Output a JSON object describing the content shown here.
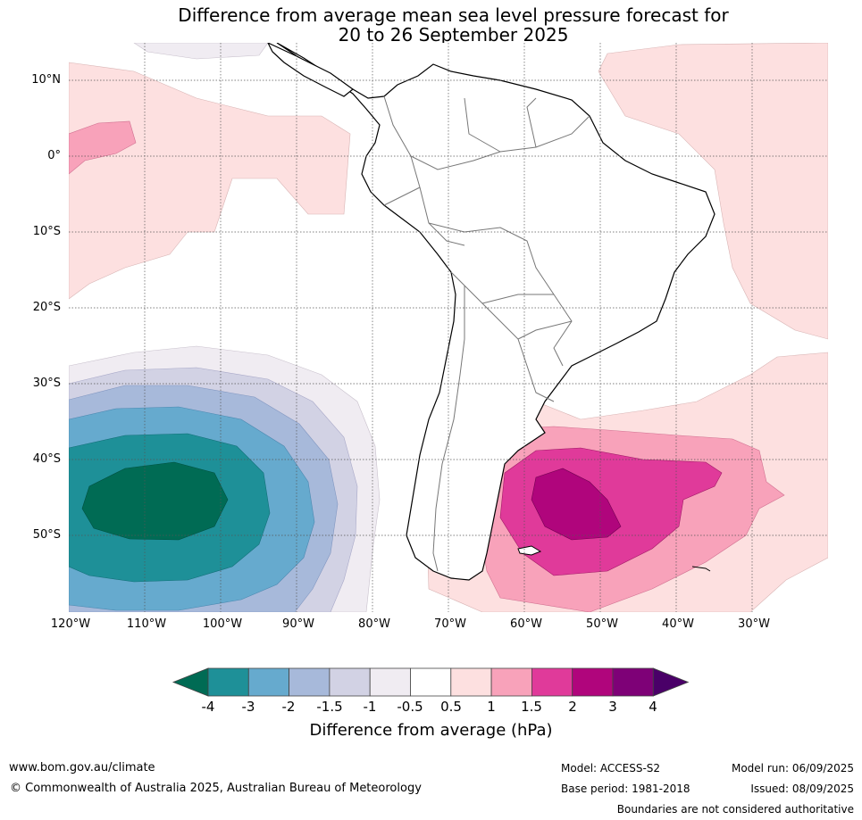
{
  "title": {
    "line1": "Difference from average mean sea level pressure forecast for",
    "line2": "20 to 26 September 2025"
  },
  "map": {
    "lat_labels": [
      "10°N",
      "0°",
      "10°S",
      "20°S",
      "30°S",
      "40°S",
      "50°S"
    ],
    "lon_labels": [
      "120°W",
      "110°W",
      "100°W",
      "90°W",
      "80°W",
      "70°W",
      "60°W",
      "50°W",
      "40°W",
      "30°W"
    ],
    "features": [
      {
        "name": "strong-negative-anomaly",
        "region": "southeast-pacific",
        "center_lat": -46,
        "center_lon": -108,
        "min_value_hpa": -4
      },
      {
        "name": "strong-positive-anomaly",
        "region": "southwest-atlantic",
        "center_lat": -46,
        "center_lon": -55,
        "max_value_hpa": 3
      },
      {
        "name": "weak-positive-anomaly",
        "region": "north-pacific",
        "center_lat": 2,
        "center_lon": -112,
        "max_value_hpa": 1.5
      },
      {
        "name": "weak-positive-anomaly",
        "region": "east-atlantic",
        "center_lat": -5,
        "center_lon": -30,
        "max_value_hpa": 1
      }
    ]
  },
  "colorbar": {
    "ticks": [
      "-4",
      "-3",
      "-2",
      "-1.5",
      "-1",
      "-0.5",
      "0.5",
      "1",
      "1.5",
      "2",
      "3",
      "4"
    ],
    "colors": [
      "#006b54",
      "#1e9098",
      "#66aace",
      "#a7b9da",
      "#d2d2e4",
      "#f0ecf2",
      "#ffffff",
      "#fde0e0",
      "#f8a2ba",
      "#e03a9a",
      "#b0057c",
      "#7e0177",
      "#4a0068"
    ],
    "label": "Difference from average (hPa)"
  },
  "footer": {
    "website": "www.bom.gov.au/climate",
    "copyright": "© Commonwealth of Australia 2025, Australian Bureau of Meteorology",
    "model": "Model: ACCESS-S2",
    "base_period": "Base period: 1981-2018",
    "model_run": "Model run: 06/09/2025",
    "issued": "Issued: 08/09/2025",
    "disclaimer": "Boundaries are not considered authoritative"
  }
}
